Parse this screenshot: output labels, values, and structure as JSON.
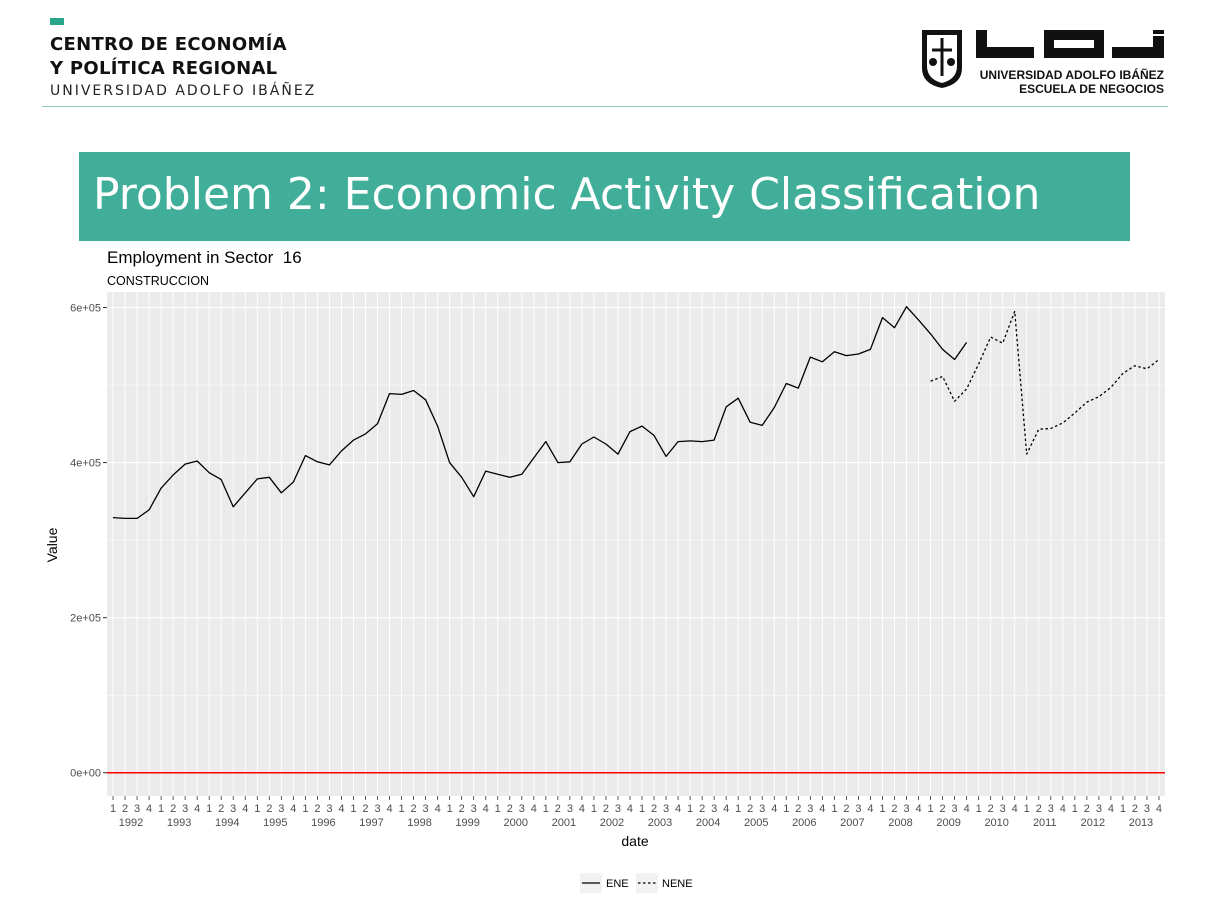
{
  "header": {
    "org_line1": "CENTRO DE ECONOMÍA",
    "org_line2": "Y POLÍTICA REGIONAL",
    "org_line3": "UNIVERSIDAD ADOLFO IBÁÑEZ",
    "uai_line1": "UNIVERSIDAD ADOLFO IBÁÑEZ",
    "uai_line2": "ESCUELA DE NEGOCIOS",
    "accent_color": "#2aa58a"
  },
  "banner": {
    "title": "Problem 2: Economic Activity Classification",
    "color": "#41ae9a"
  },
  "chart_data": {
    "type": "line",
    "title": "Employment in Sector  16",
    "subtitle": "CONSTRUCCION",
    "xlabel": "date",
    "ylabel": "Value",
    "ylim": [
      -30000,
      620000
    ],
    "yticks": [
      0,
      200000,
      400000,
      600000
    ],
    "ytick_labels": [
      "0e+00",
      "2e+05",
      "4e+05",
      "6e+05"
    ],
    "grid": true,
    "legend_position": "bottom",
    "years": [
      "1992",
      "1993",
      "1994",
      "1995",
      "1996",
      "1997",
      "1998",
      "1999",
      "2000",
      "2001",
      "2002",
      "2003",
      "2004",
      "2005",
      "2006",
      "2007",
      "2008",
      "2009",
      "2010",
      "2011",
      "2012",
      "2013"
    ],
    "quarters": [
      "1",
      "2",
      "3",
      "4"
    ],
    "reference_line": {
      "y": 0,
      "color": "#ff0000"
    },
    "series": [
      {
        "name": "ENE",
        "style": "solid",
        "color": "#000000",
        "start": "1992 Q1",
        "values": [
          329000,
          328000,
          328000,
          339000,
          367000,
          384000,
          398000,
          402000,
          387000,
          378000,
          343000,
          361000,
          379000,
          381000,
          361000,
          375000,
          409000,
          401000,
          397000,
          415000,
          429000,
          437000,
          450000,
          489000,
          488000,
          493000,
          481000,
          447000,
          400000,
          381000,
          356000,
          389000,
          385000,
          381000,
          385000,
          406000,
          427000,
          400000,
          401000,
          424000,
          433000,
          424000,
          411000,
          440000,
          447000,
          435000,
          408000,
          427000,
          428000,
          427000,
          429000,
          472000,
          483000,
          452000,
          448000,
          471000,
          502000,
          496000,
          536000,
          530000,
          543000,
          538000,
          540000,
          546000,
          587000,
          574000,
          601000,
          584000,
          566000,
          546000,
          533000,
          555000
        ]
      },
      {
        "name": "NENE",
        "style": "dashed",
        "color": "#000000",
        "start": "2009 Q1",
        "values": [
          505000,
          511000,
          479000,
          495000,
          527000,
          562000,
          554000,
          595000,
          411000,
          443000,
          444000,
          451000,
          464000,
          478000,
          485000,
          497000,
          515000,
          525000,
          521000,
          533000
        ]
      }
    ]
  }
}
